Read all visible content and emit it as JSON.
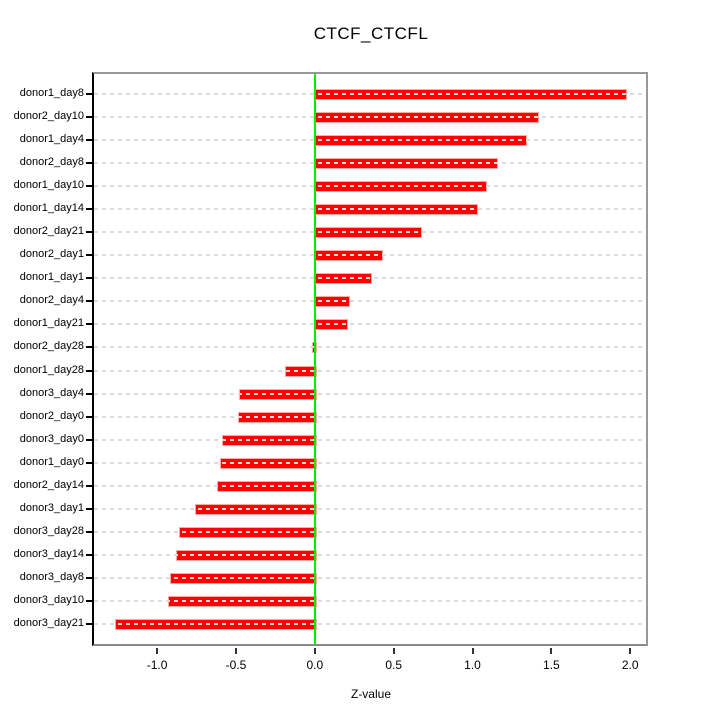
{
  "title": "CTCF_CTCFL",
  "chart_data": {
    "type": "bar",
    "orientation": "horizontal",
    "title": "CTCF_CTCFL",
    "xlabel": "Z-value",
    "xlim": [
      -1.4,
      2.1
    ],
    "xtick_values": [
      -1.0,
      -0.5,
      0.0,
      0.5,
      1.0,
      1.5,
      2.0
    ],
    "xtick_labels": [
      "-1.0",
      "-0.5",
      "0.0",
      "0.5",
      "1.0",
      "1.5",
      "2.0"
    ],
    "grid": true,
    "legend": false,
    "categories": [
      "donor1_day8",
      "donor2_day10",
      "donor1_day4",
      "donor2_day8",
      "donor1_day10",
      "donor1_day14",
      "donor2_day21",
      "donor2_day1",
      "donor1_day1",
      "donor2_day4",
      "donor1_day21",
      "donor2_day28",
      "donor1_day28",
      "donor3_day4",
      "donor2_day0",
      "donor3_day0",
      "donor1_day0",
      "donor2_day14",
      "donor3_day1",
      "donor3_day28",
      "donor3_day14",
      "donor3_day8",
      "donor3_day10",
      "donor3_day21"
    ],
    "values": [
      1.97,
      1.41,
      1.33,
      1.15,
      1.08,
      1.02,
      0.67,
      0.42,
      0.35,
      0.21,
      0.2,
      -0.02,
      -0.19,
      -0.48,
      -0.49,
      -0.59,
      -0.6,
      -0.62,
      -0.76,
      -0.86,
      -0.88,
      -0.92,
      -0.93,
      -1.27
    ],
    "colors": {
      "bar_fill": "#ff0000",
      "bar_border": "#ffa8a8",
      "zero_line": "#00ee00",
      "grid_dash": "#dcdcdc",
      "box_border": "#989898",
      "axis_line": "#000000",
      "text": "#000000"
    }
  }
}
